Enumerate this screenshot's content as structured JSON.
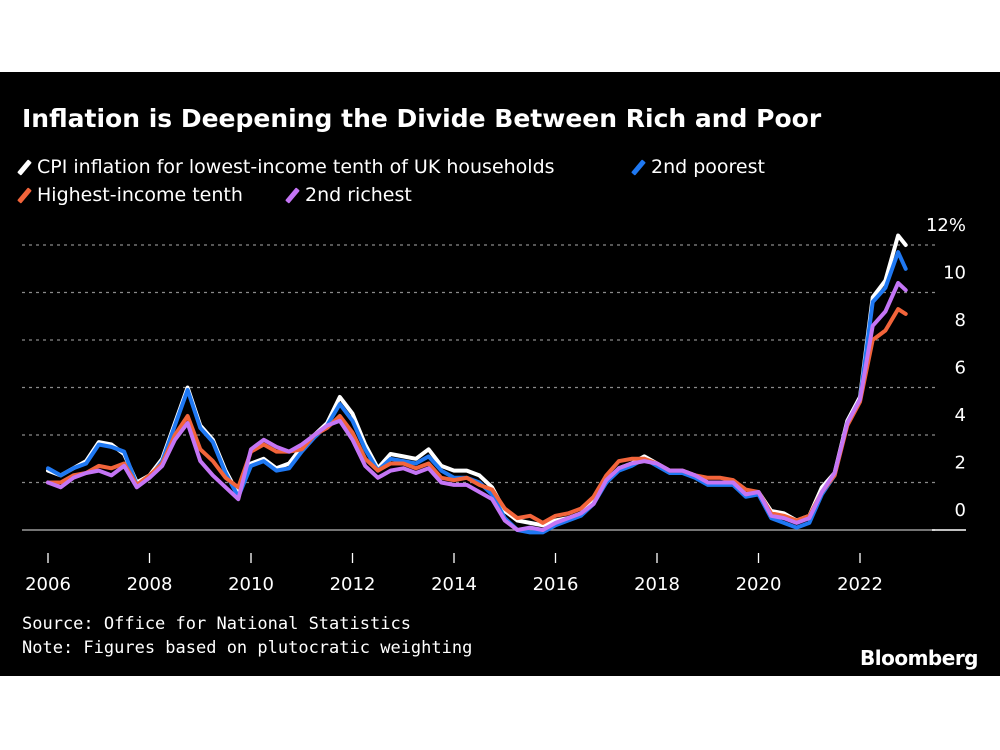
{
  "chart_data": {
    "type": "line",
    "title": "Inflation is Deepening the Divide Between Rich and Poor",
    "x_start": 2006.0,
    "x_step_years": 0.25,
    "xlim": [
      2006,
      2023
    ],
    "x_ticks": [
      "2006",
      "2008",
      "2010",
      "2012",
      "2014",
      "2016",
      "2018",
      "2020",
      "2022"
    ],
    "ylim": [
      0,
      12
    ],
    "y_ticks": [
      "0",
      "2",
      "4",
      "6",
      "8",
      "10",
      "12%"
    ],
    "y_axis_position": "right",
    "grid": true,
    "legend_position": "top-left",
    "series": [
      {
        "name": "CPI inflation for lowest-income tenth of UK households",
        "color": "#ffffff",
        "values": [
          2.5,
          2.3,
          2.6,
          2.9,
          3.7,
          3.6,
          3.2,
          2.0,
          2.3,
          3.0,
          4.5,
          6.0,
          4.4,
          3.8,
          2.5,
          1.5,
          2.8,
          3.0,
          2.6,
          2.8,
          3.5,
          4.0,
          4.5,
          5.6,
          4.9,
          3.6,
          2.6,
          3.2,
          3.1,
          3.0,
          3.4,
          2.7,
          2.5,
          2.5,
          2.3,
          1.8,
          0.8,
          0.4,
          0.3,
          0.2,
          0.4,
          0.5,
          0.7,
          1.2,
          2.0,
          2.6,
          2.8,
          3.1,
          2.8,
          2.5,
          2.5,
          2.3,
          2.0,
          2.0,
          2.0,
          1.5,
          1.6,
          0.8,
          0.7,
          0.4,
          0.6,
          1.8,
          2.4,
          4.6,
          5.6,
          9.8,
          10.5,
          12.4,
          12.0
        ]
      },
      {
        "name": "2nd poorest",
        "color": "#1f78f2",
        "values": [
          2.6,
          2.3,
          2.6,
          2.8,
          3.6,
          3.5,
          3.3,
          1.9,
          2.2,
          2.9,
          4.4,
          5.9,
          4.3,
          3.7,
          2.4,
          1.4,
          2.7,
          2.9,
          2.5,
          2.6,
          3.3,
          3.9,
          4.4,
          5.3,
          4.6,
          3.4,
          2.5,
          3.0,
          2.9,
          2.8,
          3.1,
          2.5,
          2.2,
          2.2,
          2.0,
          1.5,
          0.5,
          0.0,
          -0.1,
          -0.1,
          0.2,
          0.4,
          0.6,
          1.1,
          2.0,
          2.5,
          2.7,
          3.0,
          2.7,
          2.4,
          2.4,
          2.2,
          1.9,
          1.9,
          1.9,
          1.4,
          1.5,
          0.5,
          0.3,
          0.1,
          0.3,
          1.5,
          2.3,
          4.5,
          5.5,
          9.6,
          10.2,
          11.7,
          11.0
        ]
      },
      {
        "name": "Highest-income tenth",
        "color": "#f2643a",
        "values": [
          2.0,
          2.0,
          2.3,
          2.4,
          2.7,
          2.6,
          2.8,
          1.9,
          2.3,
          2.8,
          4.0,
          4.8,
          3.4,
          2.9,
          2.2,
          1.8,
          3.3,
          3.6,
          3.3,
          3.3,
          3.4,
          4.0,
          4.3,
          4.8,
          4.1,
          3.0,
          2.5,
          2.8,
          2.8,
          2.6,
          2.8,
          2.2,
          2.1,
          2.2,
          1.9,
          1.7,
          0.9,
          0.5,
          0.6,
          0.3,
          0.6,
          0.7,
          0.9,
          1.4,
          2.3,
          2.9,
          3.0,
          3.0,
          2.8,
          2.5,
          2.5,
          2.3,
          2.2,
          2.2,
          2.1,
          1.7,
          1.6,
          0.7,
          0.6,
          0.4,
          0.6,
          1.6,
          2.3,
          4.4,
          5.4,
          8.0,
          8.4,
          9.3,
          9.1
        ]
      },
      {
        "name": "2nd richest",
        "color": "#c475f5",
        "values": [
          2.0,
          1.8,
          2.2,
          2.4,
          2.5,
          2.3,
          2.7,
          1.8,
          2.2,
          2.7,
          3.8,
          4.5,
          2.9,
          2.3,
          1.8,
          1.3,
          3.4,
          3.8,
          3.5,
          3.3,
          3.6,
          4.0,
          4.4,
          4.6,
          3.8,
          2.7,
          2.2,
          2.5,
          2.6,
          2.4,
          2.6,
          2.0,
          1.9,
          1.9,
          1.6,
          1.3,
          0.4,
          0.0,
          0.1,
          0.0,
          0.3,
          0.5,
          0.7,
          1.1,
          2.1,
          2.6,
          2.8,
          2.9,
          2.8,
          2.5,
          2.5,
          2.3,
          2.0,
          2.0,
          2.0,
          1.5,
          1.6,
          0.6,
          0.5,
          0.3,
          0.5,
          1.6,
          2.4,
          4.5,
          5.5,
          8.6,
          9.2,
          10.4,
          10.1
        ]
      }
    ]
  },
  "footer": {
    "source": "Source: Office for National Statistics",
    "note": "Note: Figures based on plutocratic weighting",
    "logo": "Bloomberg"
  }
}
